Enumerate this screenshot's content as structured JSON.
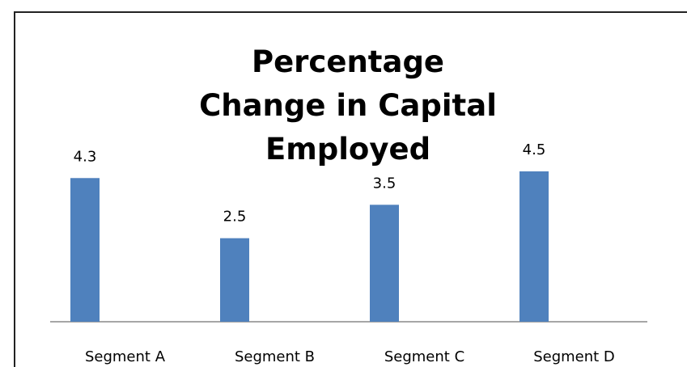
{
  "chart_data": {
    "type": "bar",
    "title": "Percentage Change in Capital Employed",
    "categories": [
      "Segment A",
      "Segment B",
      "Segment C",
      "Segment D"
    ],
    "values": [
      4.3,
      2.5,
      3.5,
      4.5
    ],
    "color": "#4f81bd"
  }
}
